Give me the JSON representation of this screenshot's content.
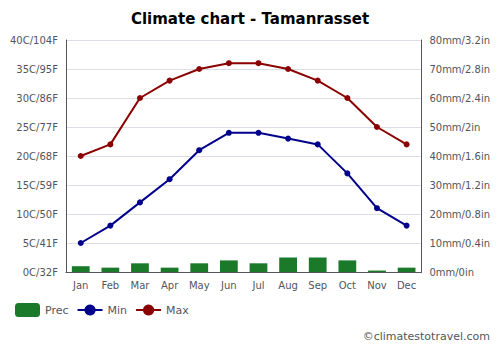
{
  "chart_data": {
    "type": "bar",
    "title": "Climate chart - Tamanrasset",
    "categories": [
      "Jan",
      "Feb",
      "Mar",
      "Apr",
      "May",
      "Jun",
      "Jul",
      "Aug",
      "Sep",
      "Oct",
      "Nov",
      "Dec"
    ],
    "series": [
      {
        "name": "Prec",
        "type": "bar",
        "axis": "y2",
        "color": "#1a7a2a",
        "values": [
          2,
          1.5,
          3,
          1.5,
          3,
          4,
          3,
          5,
          5,
          4,
          0.5,
          1.5
        ]
      },
      {
        "name": "Min",
        "type": "line",
        "color": "#00008B",
        "marker": "circle",
        "values": [
          5,
          8,
          12,
          16,
          21,
          24,
          24,
          23,
          22,
          17,
          11,
          8
        ]
      },
      {
        "name": "Max",
        "type": "line",
        "color": "#8B0000",
        "marker": "circle",
        "values": [
          20,
          22,
          30,
          33,
          35,
          36,
          36,
          35,
          33,
          30,
          25,
          22
        ]
      }
    ],
    "ylim": [
      0,
      40
    ],
    "yticks": [
      {
        "value": 0,
        "label": "0C/32F"
      },
      {
        "value": 5,
        "label": "5C/41F"
      },
      {
        "value": 10,
        "label": "10C/50F"
      },
      {
        "value": 15,
        "label": "15C/59F"
      },
      {
        "value": 20,
        "label": "20C/68F"
      },
      {
        "value": 25,
        "label": "25C/77F"
      },
      {
        "value": 30,
        "label": "30C/86F"
      },
      {
        "value": 35,
        "label": "35C/95F"
      },
      {
        "value": 40,
        "label": "40C/104F"
      }
    ],
    "y2lim": [
      0,
      80
    ],
    "y2ticks": [
      {
        "value": 0,
        "label": "0mm/0in"
      },
      {
        "value": 10,
        "label": "10mm/0.4in"
      },
      {
        "value": 20,
        "label": "20mm/0.8in"
      },
      {
        "value": 30,
        "label": "30mm/1.2in"
      },
      {
        "value": 40,
        "label": "40mm/1.6in"
      },
      {
        "value": 50,
        "label": "50mm/2in"
      },
      {
        "value": 60,
        "label": "60mm/2.4in"
      },
      {
        "value": 70,
        "label": "70mm/2.8in"
      },
      {
        "value": 80,
        "label": "80mm/3.2in"
      }
    ],
    "grid": true,
    "legend": "lower left",
    "annotations": [
      "©climatestotravel.com"
    ]
  }
}
